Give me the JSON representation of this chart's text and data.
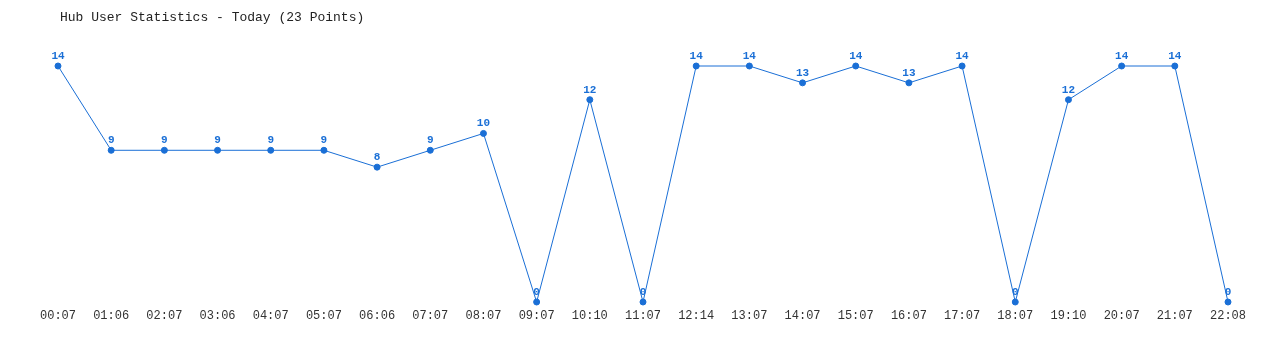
{
  "chart_data": {
    "type": "line",
    "title": "Hub User Statistics - Today (23 Points)",
    "categories": [
      "00:07",
      "01:06",
      "02:07",
      "03:06",
      "04:07",
      "05:07",
      "06:06",
      "07:07",
      "08:07",
      "09:07",
      "10:10",
      "11:07",
      "12:14",
      "13:07",
      "14:07",
      "15:07",
      "16:07",
      "17:07",
      "18:07",
      "19:10",
      "20:07",
      "21:07",
      "22:08"
    ],
    "series": [
      {
        "color": "#1a6fd6",
        "values": [
          14,
          9,
          9,
          9,
          9,
          9,
          8,
          9,
          10,
          0,
          12,
          0,
          14,
          14,
          13,
          14,
          13,
          14,
          0,
          12,
          14,
          14,
          0
        ]
      }
    ],
    "data_labels": true,
    "marker": "circle",
    "line_style": "solid",
    "grid": false,
    "legend": false,
    "tick_labels": "x"
  }
}
